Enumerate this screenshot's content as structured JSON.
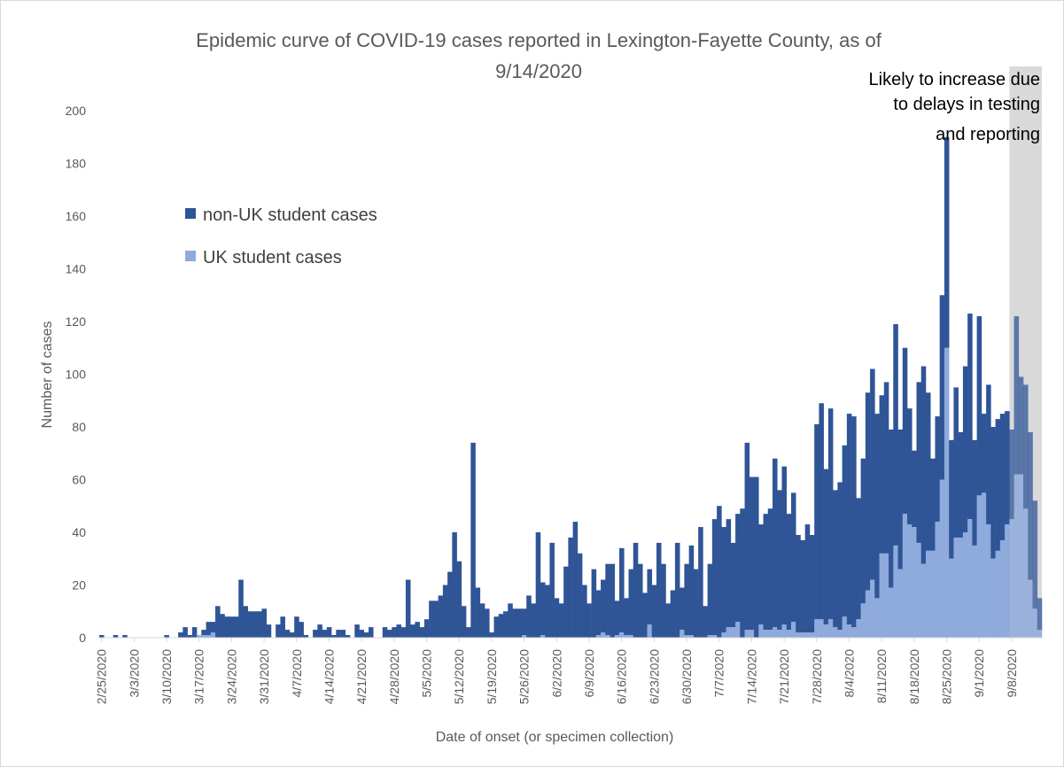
{
  "chart_data": {
    "type": "bar",
    "stacked": true,
    "title": "Epidemic curve of COVID-19 cases reported in Lexington-Fayette County, as of 9/14/2020",
    "title_lines": [
      "Epidemic curve of COVID-19 cases reported in Lexington-Fayette County, as of",
      "9/14/2020"
    ],
    "xlabel": "Date of onset (or specimen collection)",
    "ylabel": "Number of cases",
    "ylim": [
      0,
      200
    ],
    "yticks": [
      0,
      20,
      40,
      60,
      80,
      100,
      120,
      140,
      160,
      180,
      200
    ],
    "grid": false,
    "legend_position": "upper-left",
    "x_start": "2/25/2020",
    "x_end": "9/14/2020",
    "x_tick_labels": [
      "2/25/2020",
      "3/3/2020",
      "3/10/2020",
      "3/17/2020",
      "3/24/2020",
      "3/31/2020",
      "4/7/2020",
      "4/14/2020",
      "4/21/2020",
      "4/28/2020",
      "5/5/2020",
      "5/12/2020",
      "5/19/2020",
      "5/26/2020",
      "6/2/2020",
      "6/9/2020",
      "6/16/2020",
      "6/23/2020",
      "6/30/2020",
      "7/7/2020",
      "7/14/2020",
      "7/21/2020",
      "7/28/2020",
      "8/4/2020",
      "8/11/2020",
      "8/18/2020",
      "8/25/2020",
      "9/1/2020",
      "9/8/2020"
    ],
    "series": [
      {
        "name": "UK student cases",
        "color": "#8faadc",
        "values": [
          0,
          0,
          0,
          0,
          0,
          0,
          0,
          0,
          0,
          0,
          0,
          0,
          0,
          0,
          0,
          0,
          0,
          0,
          0,
          0,
          0,
          1,
          1,
          1,
          2,
          0,
          0,
          0,
          0,
          0,
          0,
          0,
          0,
          0,
          0,
          0,
          0,
          0,
          0,
          0,
          0,
          0,
          0,
          0,
          0,
          0,
          0,
          0,
          0,
          0,
          0,
          0,
          0,
          0,
          0,
          0,
          0,
          0,
          0,
          0,
          0,
          0,
          0,
          0,
          0,
          0,
          0,
          0,
          0,
          0,
          0,
          0,
          0,
          0,
          0,
          0,
          0,
          0,
          0,
          0,
          0,
          0,
          0,
          0,
          0,
          0,
          0,
          0,
          0,
          0,
          0,
          1,
          0,
          0,
          0,
          1,
          0,
          0,
          0,
          0,
          0,
          0,
          0,
          0,
          0,
          0,
          0,
          1,
          2,
          1,
          0,
          1,
          2,
          1,
          1,
          0,
          0,
          0,
          5,
          0,
          0,
          0,
          0,
          0,
          0,
          3,
          1,
          1,
          0,
          0,
          0,
          1,
          1,
          0,
          2,
          4,
          4,
          6,
          0,
          3,
          3,
          0,
          5,
          3,
          3,
          4,
          3,
          5,
          3,
          6,
          2,
          2,
          2,
          2,
          7,
          7,
          5,
          7,
          4,
          3,
          8,
          5,
          4,
          7,
          13,
          18,
          22,
          15,
          32,
          32,
          19,
          35,
          26,
          47,
          43,
          42,
          36,
          28,
          33,
          33,
          44,
          60,
          110,
          30,
          38,
          38,
          40,
          45,
          35,
          54,
          55,
          43,
          30,
          33,
          37,
          43,
          45,
          62,
          62,
          49,
          22,
          11,
          3,
          1,
          1
        ]
      },
      {
        "name": "non-UK student cases",
        "color": "#2f5597",
        "values": [
          1,
          0,
          0,
          1,
          0,
          1,
          0,
          0,
          0,
          0,
          0,
          0,
          0,
          0,
          1,
          0,
          0,
          2,
          4,
          1,
          4,
          0,
          2,
          5,
          4,
          12,
          9,
          8,
          8,
          8,
          22,
          12,
          10,
          10,
          10,
          11,
          5,
          0,
          5,
          8,
          3,
          2,
          8,
          6,
          1,
          0,
          3,
          5,
          3,
          4,
          1,
          3,
          3,
          1,
          0,
          5,
          3,
          2,
          4,
          0,
          0,
          4,
          3,
          4,
          5,
          4,
          22,
          5,
          6,
          4,
          7,
          14,
          14,
          16,
          20,
          25,
          40,
          29,
          12,
          4,
          74,
          19,
          13,
          11,
          2,
          8,
          9,
          10,
          13,
          11,
          11,
          10,
          16,
          13,
          40,
          20,
          20,
          36,
          15,
          13,
          27,
          38,
          44,
          32,
          20,
          13,
          26,
          17,
          20,
          27,
          28,
          13,
          32,
          14,
          25,
          36,
          28,
          17,
          21,
          20,
          36,
          28,
          13,
          18,
          36,
          16,
          27,
          34,
          26,
          42,
          12,
          27,
          44,
          50,
          40,
          41,
          32,
          41,
          49,
          71,
          58,
          61,
          38,
          44,
          46,
          64,
          53,
          60,
          44,
          49,
          37,
          35,
          41,
          37,
          74,
          82,
          59,
          80,
          52,
          56,
          65,
          80,
          80,
          46,
          55,
          75,
          80,
          70,
          60,
          65,
          60,
          84,
          53,
          63,
          44,
          29,
          61,
          75,
          60,
          35,
          40,
          70,
          80,
          45,
          57,
          40,
          63,
          78,
          40,
          68,
          30,
          53,
          50,
          50,
          48,
          43,
          34,
          60,
          37,
          47,
          56,
          41,
          12,
          12,
          12
        ]
      }
    ],
    "annotation": {
      "text_lines": [
        "Likely to increase due",
        "to delays in testing",
        "and reporting"
      ],
      "shaded_from": "9/8/2020"
    }
  },
  "colors": {
    "non_uk": "#2f5597",
    "uk": "#8faadc",
    "shade": "#bfbfbf",
    "axis": "#d9d9d9"
  }
}
